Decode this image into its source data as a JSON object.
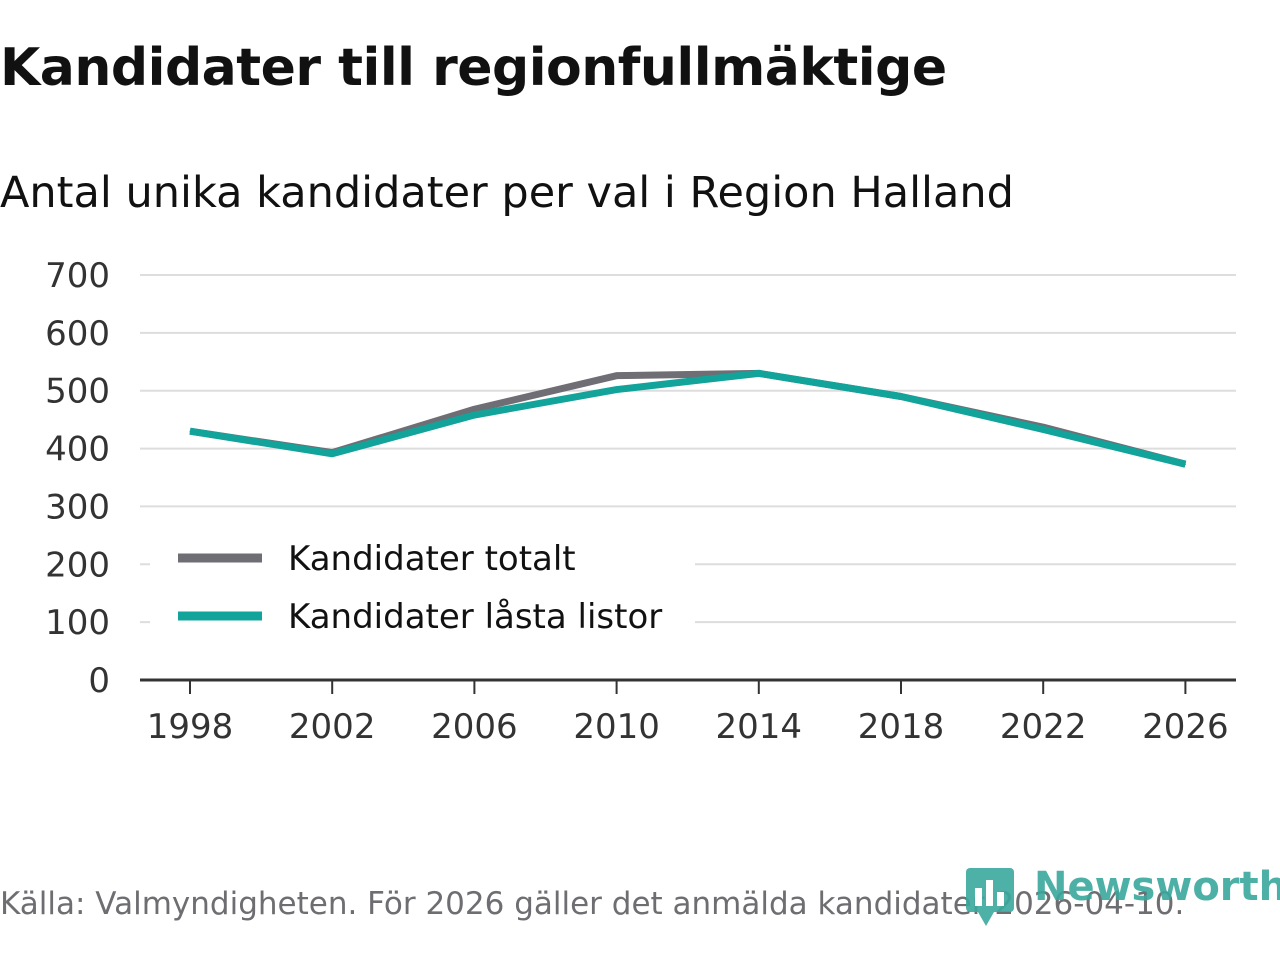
{
  "title": "Kandidater till regionfullmäktige",
  "subtitle": "Antal unika kandidater per val i Region Halland",
  "source": "Källa: Valmyndigheten. För 2026 gäller det anmälda kandidater 2026-04-10.",
  "brand": {
    "name": "Newsworthy",
    "color": "#3aa89d"
  },
  "colors": {
    "grid": "#dddddd",
    "axis": "#333333"
  },
  "chart_data": {
    "type": "line",
    "title": "Kandidater till regionfullmäktige",
    "subtitle": "Antal unika kandidater per val i Region Halland",
    "xlabel": "",
    "ylabel": "",
    "categories": [
      "1998",
      "2002",
      "2006",
      "2010",
      "2014",
      "2018",
      "2022",
      "2026"
    ],
    "ylim": [
      0,
      700
    ],
    "yticks": [
      "0",
      "100",
      "200",
      "300",
      "400",
      "500",
      "600",
      "700"
    ],
    "grid": true,
    "legend_position": "bottom-left",
    "series": [
      {
        "name": "Kandidater totalt",
        "color": "#6f6e74",
        "values": [
          430,
          393,
          468,
          526,
          530,
          490,
          437,
          373
        ]
      },
      {
        "name": "Kandidater låsta listor",
        "color": "#12a39a",
        "values": [
          430,
          391,
          458,
          502,
          530,
          490,
          433,
          373
        ]
      }
    ]
  }
}
